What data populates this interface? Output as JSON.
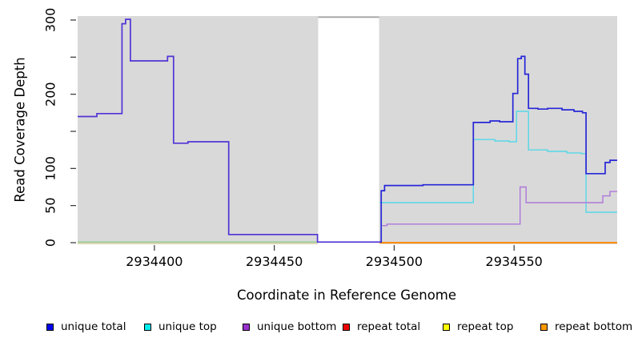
{
  "chart_data": {
    "type": "line",
    "subtype": "step-coverage",
    "title": "",
    "xlabel": "Coordinate in Reference Genome",
    "ylabel": "Read Coverage Depth",
    "grid": false,
    "panel_bg": "#d9d9d9",
    "gap_band": {
      "x_start": 2934468.3,
      "x_end": 2934493.7,
      "fill": "#ffffff",
      "cap_color": "#a0a0a0"
    },
    "x_domain": [
      2934368,
      2934593
    ],
    "y_anchors": {
      "v0_y": 303,
      "v300_y": 25
    },
    "x_ticks": [
      {
        "value": 2934400,
        "label": "2934400"
      },
      {
        "value": 2934450,
        "label": "2934450"
      },
      {
        "value": 2934500,
        "label": "2934500"
      },
      {
        "value": 2934550,
        "label": "2934550"
      }
    ],
    "y_ticks": [
      {
        "value": 0,
        "label": "0"
      },
      {
        "value": 50,
        "label": "50"
      },
      {
        "value": 100,
        "label": "100"
      },
      {
        "value": 150,
        "label": ""
      },
      {
        "value": 200,
        "label": "200"
      },
      {
        "value": 250,
        "label": ""
      },
      {
        "value": 300,
        "label": "300"
      }
    ],
    "series": [
      {
        "name": "baseline-cream",
        "color": "#ddd5a4",
        "width": 1.4,
        "end_x": 2934468,
        "points": [
          [
            2934368,
            -1.3
          ]
        ]
      },
      {
        "name": "baseline-green",
        "color": "#8ecb8e",
        "width": 1.4,
        "end_x": 2934468,
        "points": [
          [
            2934368,
            0.9
          ]
        ]
      },
      {
        "name": "unique-total-left",
        "color": "#5133d6",
        "width": 1.7,
        "end_x": 2934494,
        "points": [
          [
            2934368,
            170
          ],
          [
            2934376,
            174
          ],
          [
            2934386.5,
            295
          ],
          [
            2934388,
            301
          ],
          [
            2934390,
            245
          ],
          [
            2934405.5,
            251
          ],
          [
            2934408,
            134
          ],
          [
            2934414,
            136
          ],
          [
            2934431,
            11
          ],
          [
            2934468,
            0.9
          ]
        ]
      },
      {
        "name": "repeat-bottom-right",
        "color": "#ff8c00",
        "width": 2.0,
        "end_x": 2934593,
        "points": [
          [
            2934494,
            0
          ]
        ]
      },
      {
        "name": "unique-top",
        "color": "#55d8e8",
        "width": 1.4,
        "end_x": 2934593,
        "points": [
          [
            2934494,
            54
          ],
          [
            2934533,
            139
          ],
          [
            2934542,
            137
          ],
          [
            2934548,
            136
          ],
          [
            2934551,
            177
          ],
          [
            2934556,
            125
          ],
          [
            2934564,
            123
          ],
          [
            2934572,
            121
          ],
          [
            2934578,
            120
          ],
          [
            2934580,
            41
          ]
        ]
      },
      {
        "name": "unique-bottom",
        "color": "#ad77d9",
        "width": 1.4,
        "end_x": 2934593,
        "points": [
          [
            2934495,
            23
          ],
          [
            2934497,
            25
          ],
          [
            2934552.5,
            75
          ],
          [
            2934555,
            54
          ],
          [
            2934587,
            63
          ],
          [
            2934590,
            69
          ]
        ]
      },
      {
        "name": "unique-total-right",
        "color": "#2727d8",
        "width": 1.7,
        "end_x": 2934593,
        "points": [
          [
            2934494,
            0.9
          ],
          [
            2934494.6,
            70
          ],
          [
            2934496,
            77
          ],
          [
            2934512,
            78
          ],
          [
            2934533,
            162
          ],
          [
            2934540,
            164
          ],
          [
            2934544,
            163
          ],
          [
            2934549.5,
            201
          ],
          [
            2934551.5,
            248
          ],
          [
            2934553,
            251
          ],
          [
            2934554.5,
            227
          ],
          [
            2934556,
            181
          ],
          [
            2934560,
            180
          ],
          [
            2934564,
            181
          ],
          [
            2934570,
            179
          ],
          [
            2934575,
            177
          ],
          [
            2934578.5,
            175
          ],
          [
            2934580,
            93
          ],
          [
            2934588,
            108
          ],
          [
            2934590,
            111
          ]
        ]
      }
    ],
    "legend": {
      "position": "bottom",
      "items": [
        {
          "label": "unique total",
          "color": "#0000ee",
          "x": 58
        },
        {
          "label": "unique top",
          "color": "#00eeee",
          "x": 180
        },
        {
          "label": "unique bottom",
          "color": "#9932cc",
          "x": 303
        },
        {
          "label": "repeat total",
          "color": "#ee0000",
          "x": 428
        },
        {
          "label": "repeat top",
          "color": "#ffff00",
          "x": 553
        },
        {
          "label": "repeat bottom",
          "color": "#ff9900",
          "x": 675
        }
      ]
    }
  }
}
